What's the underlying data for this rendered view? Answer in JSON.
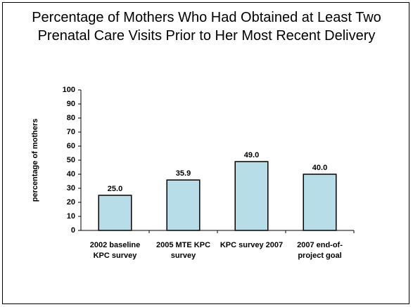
{
  "chart_data": {
    "type": "bar",
    "title": "Percentage of Mothers Who Had Obtained at Least Two Prenatal Care Visits Prior to Her Most Recent Delivery",
    "y_label": "percentage of mothers",
    "categories": [
      "2002 baseline KPC survey",
      "2005 MTE KPC survey",
      "KPC survey 2007",
      "2007 end-of-project goal"
    ],
    "values": [
      25,
      35.9,
      49,
      40
    ],
    "value_labels": [
      "25.0",
      "35.9",
      "49.0",
      "40.0"
    ],
    "color": "#b7dde8",
    "ylim": [
      0,
      100
    ],
    "yticks": [
      0,
      10,
      20,
      30,
      40,
      50,
      60,
      70,
      80,
      90,
      100
    ],
    "grid": false
  }
}
